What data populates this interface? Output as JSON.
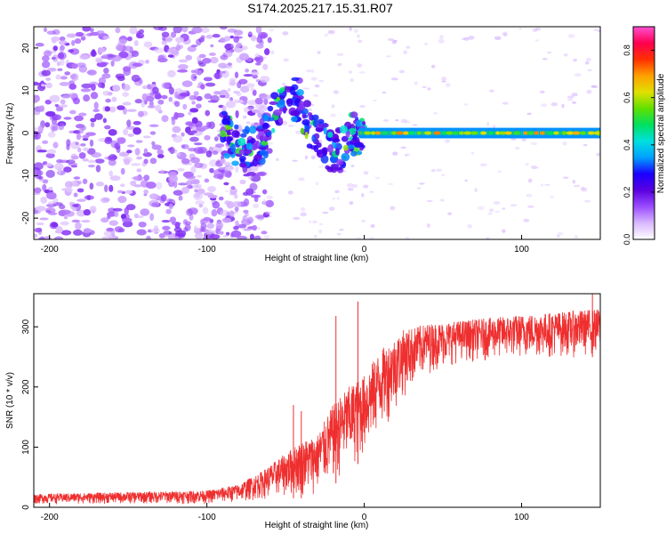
{
  "figure": {
    "title": "S174.2025.217.15.31.R07"
  },
  "chart_data": [
    {
      "type": "heatmap",
      "xlabel": "Height of straight line (km)",
      "ylabel": "Frequency (Hz)",
      "xlim": [
        -210,
        150
      ],
      "ylim": [
        -25,
        25
      ],
      "xticks": [
        -200,
        -100,
        0,
        100
      ],
      "yticks": [
        -20,
        -10,
        0,
        10,
        20
      ],
      "colorbar": {
        "label": "Normalized spectral amplitude",
        "range": [
          0,
          0.9
        ],
        "ticks": [
          0.0,
          0.2,
          0.4,
          0.6,
          0.8
        ],
        "colormap": [
          "#ffffff",
          "#d9b8ff",
          "#9b4dff",
          "#5a00e0",
          "#1a00ff",
          "#00a0ff",
          "#00e0e0",
          "#00e060",
          "#60e000",
          "#e0e000",
          "#ffa000",
          "#ff3000",
          "#ff0050",
          "#ff50d0"
        ]
      },
      "features": {
        "tone_frequency_hz": 0,
        "tone_amplitude_above_0km": 0.6,
        "noise_region_km": [
          -210,
          -90
        ],
        "transition_region_km": [
          -90,
          0
        ]
      }
    },
    {
      "type": "line",
      "xlabel": "Height of straight line (km)",
      "ylabel": "SNR (10 * v/v)",
      "xlim": [
        -210,
        150
      ],
      "ylim": [
        0,
        355
      ],
      "xticks": [
        -200,
        -100,
        0,
        100
      ],
      "yticks": [
        0,
        100,
        200,
        300
      ],
      "color": "#ef2f2f",
      "profile": {
        "x": [
          -210,
          -100,
          -80,
          -65,
          -50,
          -40,
          -30,
          -20,
          -10,
          0,
          10,
          25,
          40,
          60,
          100,
          150
        ],
        "baseline": [
          5,
          5,
          7,
          12,
          15,
          15,
          20,
          35,
          60,
          80,
          120,
          180,
          220,
          240,
          245,
          250
        ],
        "upper": [
          22,
          28,
          38,
          60,
          90,
          110,
          120,
          170,
          200,
          220,
          260,
          295,
          305,
          310,
          320,
          330
        ]
      },
      "spikes": [
        {
          "x": -18,
          "y": 318
        },
        {
          "x": -4,
          "y": 342
        },
        {
          "x": -45,
          "y": 170
        },
        {
          "x": -40,
          "y": 160
        },
        {
          "x": 145,
          "y": 355
        }
      ]
    }
  ]
}
